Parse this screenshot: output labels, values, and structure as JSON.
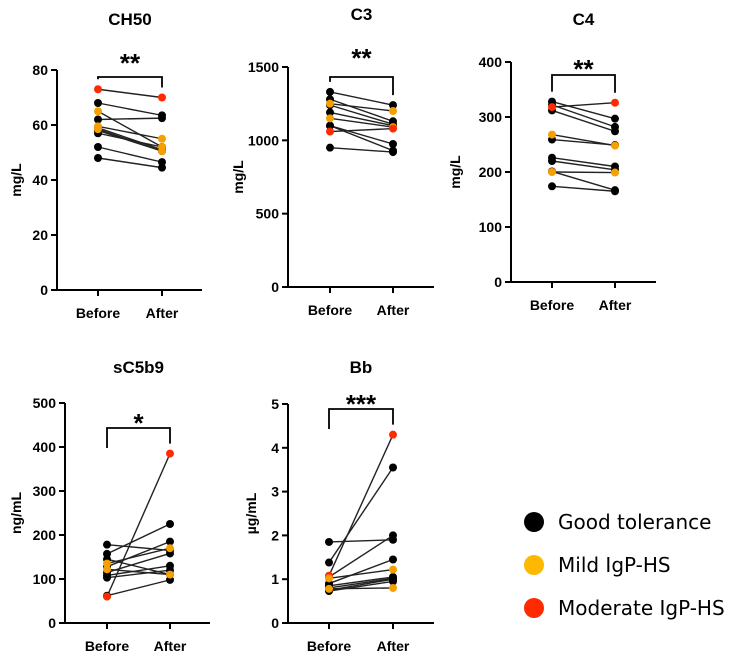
{
  "colors": {
    "good": "#000000",
    "mild": "#F5A000",
    "moderate": "#FF2A00"
  },
  "legend": [
    {
      "key": "good",
      "label": "Good tolerance",
      "color": "#000000"
    },
    {
      "key": "mild",
      "label": "Mild IgP-HS",
      "color": "#FFB800"
    },
    {
      "key": "moderate",
      "label": "Moderate IgP-HS",
      "color": "#FF2A00"
    }
  ],
  "chart_data": [
    {
      "type": "scatter",
      "subtype": "paired-before-after",
      "title": "CH50",
      "ylabel": "mg/L",
      "categories": [
        "Before",
        "After"
      ],
      "ylim": [
        0,
        80
      ],
      "yticks": [
        0,
        20,
        40,
        60,
        80
      ],
      "significance": "**",
      "pairs": [
        {
          "group": "moderate",
          "before": 73,
          "after": 70
        },
        {
          "group": "good",
          "before": 68,
          "after": 63.5
        },
        {
          "group": "mild",
          "before": 65,
          "after": 52
        },
        {
          "group": "good",
          "before": 62,
          "after": 62.5
        },
        {
          "group": "mild",
          "before": 59.5,
          "after": 55
        },
        {
          "group": "good",
          "before": 59,
          "after": 51
        },
        {
          "group": "good",
          "before": 58,
          "after": 50.5
        },
        {
          "group": "good",
          "before": 57,
          "after": 52
        },
        {
          "group": "good",
          "before": 52,
          "after": 46.5
        },
        {
          "group": "good",
          "before": 48,
          "after": 44.5
        },
        {
          "group": "mild",
          "before": 58.5,
          "after": 50.5
        }
      ]
    },
    {
      "type": "scatter",
      "subtype": "paired-before-after",
      "title": "C3",
      "ylabel": "mg/L",
      "categories": [
        "Before",
        "After"
      ],
      "ylim": [
        0,
        1500
      ],
      "yticks": [
        0,
        500,
        1000,
        1500
      ],
      "significance": "**",
      "pairs": [
        {
          "group": "good",
          "before": 1330,
          "after": 1240
        },
        {
          "group": "good",
          "before": 1280,
          "after": 1130
        },
        {
          "group": "mild",
          "before": 1250,
          "after": 1200
        },
        {
          "group": "good",
          "before": 1240,
          "after": 1110
        },
        {
          "group": "good",
          "before": 1190,
          "after": 1100
        },
        {
          "group": "mild",
          "before": 1150,
          "after": 1090
        },
        {
          "group": "good",
          "before": 1100,
          "after": 975
        },
        {
          "group": "good",
          "before": 1100,
          "after": 930
        },
        {
          "group": "moderate",
          "before": 1060,
          "after": 1080
        },
        {
          "group": "good",
          "before": 950,
          "after": 920
        }
      ]
    },
    {
      "type": "scatter",
      "subtype": "paired-before-after",
      "title": "C4",
      "ylabel": "mg/L",
      "categories": [
        "Before",
        "After"
      ],
      "ylim": [
        0,
        400
      ],
      "yticks": [
        0,
        100,
        200,
        300,
        400
      ],
      "significance": "**",
      "pairs": [
        {
          "group": "good",
          "before": 328,
          "after": 297
        },
        {
          "group": "moderate",
          "before": 318,
          "after": 326
        },
        {
          "group": "good",
          "before": 322,
          "after": 282
        },
        {
          "group": "good",
          "before": 312,
          "after": 274
        },
        {
          "group": "mild",
          "before": 268,
          "after": 248
        },
        {
          "group": "good",
          "before": 259,
          "after": 249
        },
        {
          "group": "good",
          "before": 226,
          "after": 210
        },
        {
          "group": "good",
          "before": 220,
          "after": 204
        },
        {
          "group": "mild",
          "before": 200,
          "after": 199
        },
        {
          "group": "good",
          "before": 201,
          "after": 167
        },
        {
          "group": "good",
          "before": 174,
          "after": 165
        }
      ]
    },
    {
      "type": "scatter",
      "subtype": "paired-before-after",
      "title": "sC5b9",
      "ylabel": "ng/mL",
      "categories": [
        "Before",
        "After"
      ],
      "ylim": [
        0,
        500
      ],
      "yticks": [
        0,
        100,
        200,
        300,
        400,
        500
      ],
      "significance": "*",
      "pairs": [
        {
          "group": "moderate",
          "before": 60,
          "after": 385
        },
        {
          "group": "good",
          "before": 178,
          "after": 165
        },
        {
          "group": "good",
          "before": 157,
          "after": 225
        },
        {
          "group": "good",
          "before": 145,
          "after": 110
        },
        {
          "group": "mild",
          "before": 135,
          "after": 170
        },
        {
          "group": "mild",
          "before": 122,
          "after": 110
        },
        {
          "group": "good",
          "before": 128,
          "after": 185
        },
        {
          "group": "good",
          "before": 115,
          "after": 158
        },
        {
          "group": "good",
          "before": 108,
          "after": 130
        },
        {
          "group": "good",
          "before": 103,
          "after": 120
        },
        {
          "group": "good",
          "before": 62,
          "after": 98
        }
      ]
    },
    {
      "type": "scatter",
      "subtype": "paired-before-after",
      "title": "Bb",
      "ylabel": "µg/mL",
      "categories": [
        "Before",
        "After"
      ],
      "ylim": [
        0,
        5
      ],
      "yticks": [
        0,
        1,
        2,
        3,
        4,
        5
      ],
      "significance": "***",
      "pairs": [
        {
          "group": "moderate",
          "before": 1.08,
          "after": 4.3
        },
        {
          "group": "good",
          "before": 1.38,
          "after": 3.55
        },
        {
          "group": "good",
          "before": 1.85,
          "after": 1.9
        },
        {
          "group": "good",
          "before": 1.05,
          "after": 2.0
        },
        {
          "group": "good",
          "before": 0.9,
          "after": 1.45
        },
        {
          "group": "mild",
          "before": 1.02,
          "after": 1.22
        },
        {
          "group": "good",
          "before": 0.85,
          "after": 1.05
        },
        {
          "group": "good",
          "before": 0.8,
          "after": 1.02
        },
        {
          "group": "mild",
          "before": 0.78,
          "after": 0.8
        },
        {
          "group": "good",
          "before": 0.75,
          "after": 1.0
        },
        {
          "group": "good",
          "before": 0.73,
          "after": 0.95
        }
      ]
    }
  ]
}
